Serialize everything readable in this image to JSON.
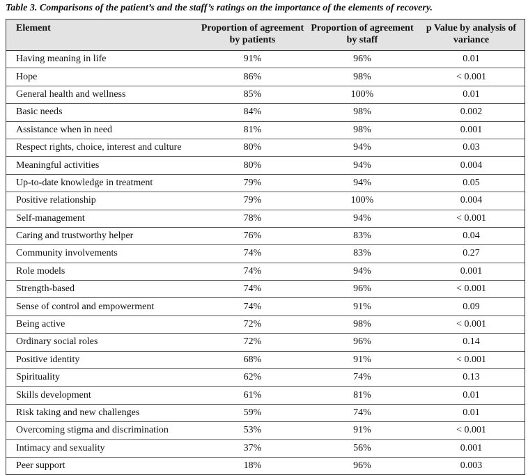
{
  "caption": "Table 3. Comparisons of the patient’s and the staff’s ratings on the importance of the elements of recovery.",
  "headers": {
    "element": "Element",
    "patients": "Proportion of agreement by patients",
    "staff": "Proportion of agreement by staff",
    "pvalue": "p Value by analysis of variance"
  },
  "rows": [
    {
      "element": "Having meaning in life",
      "patients": "91%",
      "staff": "96%",
      "p": "0.01"
    },
    {
      "element": "Hope",
      "patients": "86%",
      "staff": "98%",
      "p": "< 0.001"
    },
    {
      "element": "General health and wellness",
      "patients": "85%",
      "staff": "100%",
      "p": "0.01"
    },
    {
      "element": "Basic needs",
      "patients": "84%",
      "staff": "98%",
      "p": "0.002"
    },
    {
      "element": "Assistance when in need",
      "patients": "81%",
      "staff": "98%",
      "p": "0.001"
    },
    {
      "element": "Respect rights, choice, interest and culture",
      "patients": "80%",
      "staff": "94%",
      "p": "0.03"
    },
    {
      "element": "Meaningful activities",
      "patients": "80%",
      "staff": "94%",
      "p": "0.004"
    },
    {
      "element": "Up-to-date knowledge in treatment",
      "patients": "79%",
      "staff": "94%",
      "p": "0.05"
    },
    {
      "element": "Positive relationship",
      "patients": "79%",
      "staff": "100%",
      "p": "0.004"
    },
    {
      "element": "Self-management",
      "patients": "78%",
      "staff": "94%",
      "p": "< 0.001"
    },
    {
      "element": "Caring and trustworthy helper",
      "patients": "76%",
      "staff": "83%",
      "p": "0.04"
    },
    {
      "element": "Community involvements",
      "patients": "74%",
      "staff": "83%",
      "p": "0.27"
    },
    {
      "element": "Role models",
      "patients": "74%",
      "staff": "94%",
      "p": "0.001"
    },
    {
      "element": "Strength-based",
      "patients": "74%",
      "staff": "96%",
      "p": "< 0.001"
    },
    {
      "element": "Sense of control and empowerment",
      "patients": "74%",
      "staff": "91%",
      "p": "0.09"
    },
    {
      "element": "Being active",
      "patients": "72%",
      "staff": "98%",
      "p": "< 0.001"
    },
    {
      "element": "Ordinary social roles",
      "patients": "72%",
      "staff": "96%",
      "p": "0.14"
    },
    {
      "element": "Positive identity",
      "patients": "68%",
      "staff": "91%",
      "p": "< 0.001"
    },
    {
      "element": "Spirituality",
      "patients": "62%",
      "staff": "74%",
      "p": "0.13"
    },
    {
      "element": "Skills development",
      "patients": "61%",
      "staff": "81%",
      "p": "0.01"
    },
    {
      "element": "Risk taking and new challenges",
      "patients": "59%",
      "staff": "74%",
      "p": "0.01"
    },
    {
      "element": "Overcoming stigma and discrimination",
      "patients": "53%",
      "staff": "91%",
      "p": "< 0.001"
    },
    {
      "element": "Intimacy and sexuality",
      "patients": "37%",
      "staff": "56%",
      "p": "0.001"
    },
    {
      "element": "Peer support",
      "patients": "18%",
      "staff": "96%",
      "p": "0.003"
    }
  ]
}
